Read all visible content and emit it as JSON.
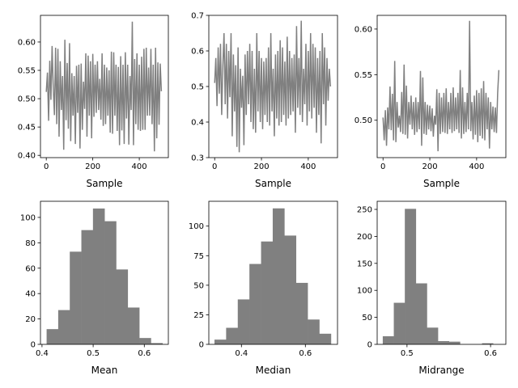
{
  "chart_data": [
    {
      "type": "line",
      "xlabel": "Sample",
      "xlim": [
        -25,
        525
      ],
      "ylim": [
        0.396,
        0.647
      ],
      "xticks": [
        "0",
        "200",
        "400"
      ],
      "xtick_values": [
        0,
        200,
        400
      ],
      "yticks": [
        "0.40",
        "0.45",
        "0.50",
        "0.55",
        "0.60"
      ],
      "ytick_values": [
        0.4,
        0.45,
        0.5,
        0.55,
        0.6
      ],
      "color": "#808080",
      "x_start": 0,
      "x_step": 5,
      "y": [
        0.512,
        0.546,
        0.461,
        0.567,
        0.498,
        0.593,
        0.52,
        0.471,
        0.59,
        0.455,
        0.588,
        0.433,
        0.566,
        0.48,
        0.54,
        0.41,
        0.604,
        0.462,
        0.563,
        0.447,
        0.598,
        0.425,
        0.545,
        0.47,
        0.54,
        0.42,
        0.558,
        0.475,
        0.56,
        0.412,
        0.562,
        0.445,
        0.53,
        0.482,
        0.58,
        0.433,
        0.576,
        0.47,
        0.566,
        0.43,
        0.579,
        0.468,
        0.56,
        0.475,
        0.566,
        0.48,
        0.535,
        0.463,
        0.58,
        0.452,
        0.56,
        0.455,
        0.555,
        0.47,
        0.55,
        0.44,
        0.583,
        0.438,
        0.582,
        0.47,
        0.56,
        0.443,
        0.556,
        0.418,
        0.575,
        0.444,
        0.56,
        0.42,
        0.582,
        0.465,
        0.56,
        0.419,
        0.54,
        0.48,
        0.636,
        0.418,
        0.57,
        0.455,
        0.58,
        0.445,
        0.56,
        0.443,
        0.574,
        0.445,
        0.588,
        0.445,
        0.59,
        0.47,
        0.555,
        0.47,
        0.588,
        0.455,
        0.56,
        0.407,
        0.59,
        0.43,
        0.564,
        0.454,
        0.562,
        0.513
      ]
    },
    {
      "type": "line",
      "xlabel": "Sample",
      "xlim": [
        -25,
        525
      ],
      "ylim": [
        0.3,
        0.7
      ],
      "xticks": [
        "0",
        "200",
        "400"
      ],
      "xtick_values": [
        0,
        200,
        400
      ],
      "yticks": [
        "0.3",
        "0.4",
        "0.5",
        "0.6",
        "0.7"
      ],
      "ytick_values": [
        0.3,
        0.4,
        0.5,
        0.6,
        0.7
      ],
      "color": "#808080",
      "x_start": 0,
      "x_step": 5,
      "y": [
        0.51,
        0.58,
        0.445,
        0.61,
        0.48,
        0.62,
        0.42,
        0.56,
        0.65,
        0.45,
        0.62,
        0.41,
        0.6,
        0.47,
        0.65,
        0.36,
        0.59,
        0.43,
        0.56,
        0.33,
        0.61,
        0.315,
        0.55,
        0.44,
        0.53,
        0.335,
        0.59,
        0.42,
        0.6,
        0.45,
        0.62,
        0.4,
        0.6,
        0.38,
        0.55,
        0.37,
        0.65,
        0.43,
        0.6,
        0.4,
        0.58,
        0.38,
        0.57,
        0.42,
        0.58,
        0.4,
        0.61,
        0.39,
        0.65,
        0.43,
        0.55,
        0.36,
        0.59,
        0.41,
        0.6,
        0.39,
        0.63,
        0.4,
        0.61,
        0.42,
        0.57,
        0.39,
        0.64,
        0.41,
        0.6,
        0.42,
        0.58,
        0.43,
        0.59,
        0.37,
        0.67,
        0.44,
        0.58,
        0.42,
        0.685,
        0.4,
        0.55,
        0.45,
        0.62,
        0.39,
        0.6,
        0.43,
        0.65,
        0.41,
        0.62,
        0.44,
        0.61,
        0.37,
        0.58,
        0.42,
        0.6,
        0.34,
        0.65,
        0.45,
        0.61,
        0.39,
        0.58,
        0.46,
        0.55,
        0.5
      ]
    },
    {
      "type": "line",
      "xlabel": "Sample",
      "xlim": [
        -25,
        525
      ],
      "ylim": [
        0.459,
        0.615
      ],
      "xticks": [
        "0",
        "200",
        "400"
      ],
      "xtick_values": [
        0,
        200,
        400
      ],
      "yticks": [
        "0.50",
        "0.55",
        "0.60"
      ],
      "ytick_values": [
        0.5,
        0.55,
        0.6
      ],
      "color": "#808080",
      "x_start": 0,
      "x_step": 5,
      "y": [
        0.503,
        0.478,
        0.511,
        0.472,
        0.514,
        0.49,
        0.537,
        0.489,
        0.529,
        0.478,
        0.565,
        0.476,
        0.52,
        0.492,
        0.505,
        0.487,
        0.531,
        0.485,
        0.561,
        0.484,
        0.538,
        0.48,
        0.52,
        0.495,
        0.527,
        0.49,
        0.52,
        0.484,
        0.525,
        0.487,
        0.52,
        0.49,
        0.554,
        0.472,
        0.547,
        0.485,
        0.52,
        0.484,
        0.517,
        0.49,
        0.516,
        0.488,
        0.513,
        0.482,
        0.505,
        0.495,
        0.534,
        0.466,
        0.53,
        0.485,
        0.525,
        0.487,
        0.53,
        0.486,
        0.535,
        0.485,
        0.52,
        0.49,
        0.53,
        0.486,
        0.536,
        0.488,
        0.525,
        0.49,
        0.53,
        0.486,
        0.555,
        0.48,
        0.536,
        0.485,
        0.52,
        0.487,
        0.53,
        0.49,
        0.609,
        0.488,
        0.52,
        0.479,
        0.527,
        0.484,
        0.533,
        0.476,
        0.53,
        0.483,
        0.535,
        0.48,
        0.543,
        0.478,
        0.53,
        0.49,
        0.525,
        0.469,
        0.52,
        0.49,
        0.515,
        0.487,
        0.514,
        0.486,
        0.53,
        0.555
      ]
    },
    {
      "type": "bar",
      "xlabel": "Mean",
      "xlim": [
        0.397,
        0.647
      ],
      "ylim": [
        0,
        112.7
      ],
      "xticks": [
        "0.4",
        "0.5",
        "0.6"
      ],
      "xtick_values": [
        0.4,
        0.5,
        0.6
      ],
      "yticks": [
        "0",
        "20",
        "40",
        "60",
        "80",
        "100"
      ],
      "ytick_values": [
        0,
        20,
        40,
        60,
        80,
        100
      ],
      "color": "#808080",
      "bin_range": [
        0.409,
        0.6355
      ],
      "values": [
        12,
        27,
        73,
        90,
        107,
        97,
        59,
        29,
        5,
        1
      ]
    },
    {
      "type": "bar",
      "xlabel": "Median",
      "xlim": [
        0.298,
        0.7005
      ],
      "ylim": [
        0,
        121
      ],
      "xticks": [
        "0.4",
        "0.6"
      ],
      "xtick_values": [
        0.4,
        0.6
      ],
      "yticks": [
        "0",
        "25",
        "50",
        "75",
        "100"
      ],
      "ytick_values": [
        0,
        25,
        50,
        75,
        100
      ],
      "color": "#808080",
      "bin_range": [
        0.3157,
        0.68
      ],
      "values": [
        4,
        14,
        38,
        68,
        87,
        115,
        92,
        52,
        21,
        9
      ]
    },
    {
      "type": "bar",
      "xlabel": "Midrange",
      "xlim": [
        0.4643,
        0.6183
      ],
      "ylim": [
        0,
        265
      ],
      "xticks": [
        "0.5",
        "0.6"
      ],
      "xtick_values": [
        0.5,
        0.6
      ],
      "yticks": [
        "0",
        "50",
        "100",
        "150",
        "200",
        "250"
      ],
      "ytick_values": [
        0,
        50,
        100,
        150,
        200,
        250
      ],
      "color": "#808080",
      "bin_range": [
        0.471,
        0.603
      ],
      "values": [
        15,
        77,
        251,
        113,
        31,
        6,
        5,
        0,
        0,
        2
      ]
    }
  ]
}
